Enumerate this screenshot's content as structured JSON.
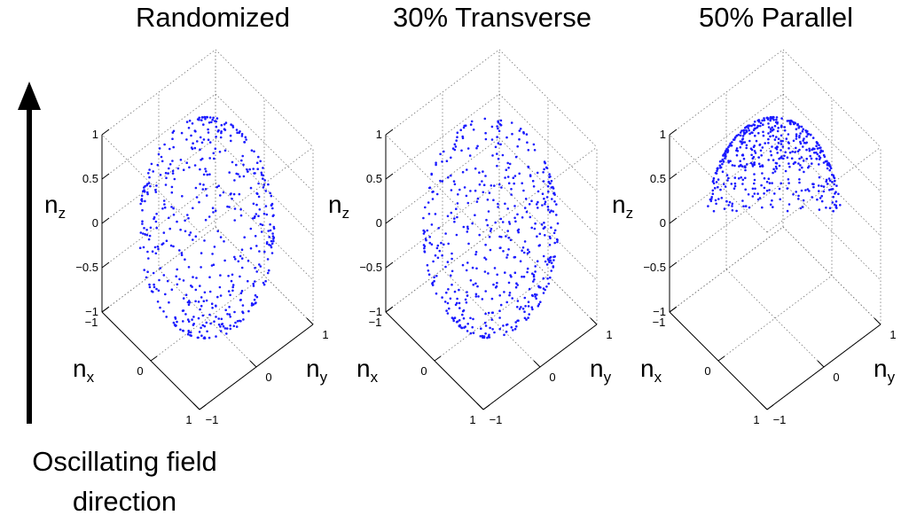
{
  "caption": {
    "line1": "Oscillating field",
    "line2": "direction"
  },
  "axes": {
    "x_symbol": "n",
    "x_sub": "x",
    "y_symbol": "n",
    "y_sub": "y",
    "z_symbol": "n",
    "z_sub": "z"
  },
  "colors": {
    "points": "#1a1aff",
    "axes": "#000000",
    "grid": "#777777",
    "arrow": "#000000"
  },
  "chart_data": [
    {
      "type": "scatter",
      "title": "Randomized",
      "distribution": "uniform-sphere",
      "n_points": 500,
      "xlim": [
        -1,
        1
      ],
      "ylim": [
        -1,
        1
      ],
      "zlim": [
        -1,
        1
      ],
      "x_ticks": [
        "−1",
        "0",
        "1"
      ],
      "y_ticks": [
        "−1",
        "0",
        "1"
      ],
      "z_ticks": [
        "1",
        "0.5",
        "0",
        "−0.5",
        "−1"
      ],
      "grid": true
    },
    {
      "type": "scatter",
      "title": "30% Transverse",
      "distribution": "transverse-biased-sphere",
      "n_points": 500,
      "xlim": [
        -1,
        1
      ],
      "ylim": [
        -1,
        1
      ],
      "zlim": [
        -1,
        1
      ],
      "x_ticks": [
        "−1",
        "0",
        "1"
      ],
      "y_ticks": [
        "−1",
        "0",
        "1"
      ],
      "z_ticks": [
        "1",
        "0.5",
        "0",
        "−0.5",
        "−1"
      ],
      "grid": true
    },
    {
      "type": "scatter",
      "title": "50% Parallel",
      "distribution": "parallel-biased-sphere",
      "n_points": 500,
      "xlim": [
        -1,
        1
      ],
      "ylim": [
        -1,
        1
      ],
      "zlim": [
        -1,
        1
      ],
      "x_ticks": [
        "−1",
        "0",
        "1"
      ],
      "y_ticks": [
        "−1",
        "0",
        "1"
      ],
      "z_ticks": [
        "1",
        "0.5",
        "0",
        "−0.5",
        "−1"
      ],
      "grid": true
    }
  ]
}
